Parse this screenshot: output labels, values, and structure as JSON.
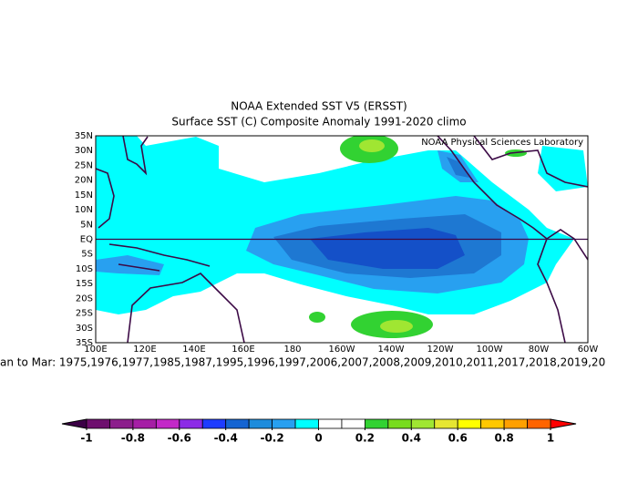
{
  "title": "NOAA Extended SST V5 (ERSST)",
  "subtitle": "Surface SST (C) Composite Anomaly 1991-2020 climo",
  "credit": "NOAA Physical Sciences Laboratory",
  "lat_labels": [
    "35N",
    "30N",
    "25N",
    "20N",
    "15N",
    "10N",
    "5N",
    "EQ",
    "5S",
    "10S",
    "15S",
    "20S",
    "25S",
    "30S",
    "35S"
  ],
  "lon_labels": [
    "100E",
    "120E",
    "140E",
    "160E",
    "180",
    "160W",
    "140W",
    "120W",
    "100W",
    "80W",
    "60W"
  ],
  "composite": "an to Mar: 1975,1976,1977,1985,1987,1995,1996,1997,2006,2007,2008,2009,2010,2011,2017,2018,2019,20",
  "colorbar": {
    "ticks": [
      -1,
      -0.8,
      -0.6,
      -0.4,
      -0.2,
      0,
      0.2,
      0.4,
      0.6,
      0.8,
      1
    ],
    "under": "#3c0046",
    "over": "#ff0000",
    "colors": [
      "#6e0f6e",
      "#8c1e8c",
      "#a51ea5",
      "#c328c8",
      "#8c2be6",
      "#1e3cff",
      "#1464d2",
      "#1e8cdc",
      "#28a0f0",
      "#00ffff",
      "#ffffff",
      "#ffffff",
      "#32d232",
      "#78dc1e",
      "#a0e632",
      "#e6e632",
      "#ffff00",
      "#ffc800",
      "#ffa000",
      "#ff6400"
    ]
  }
}
